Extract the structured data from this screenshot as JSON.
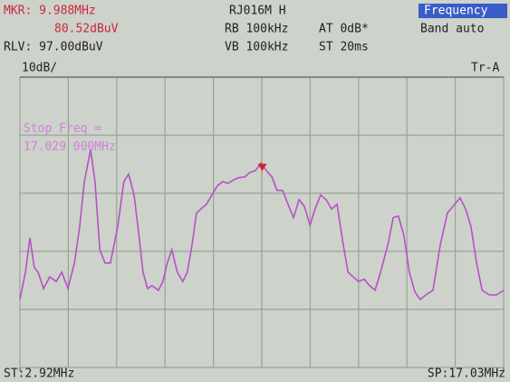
{
  "chart_data": {
    "type": "line",
    "annotations": [
      "RJ016M H",
      "RB 100kHz",
      "VB 100kHz",
      "AT 0dB*",
      "ST 20ms",
      "Frequency",
      "Band auto",
      "10dB/",
      "Tr-A",
      "Stop Freq =",
      "17.029 000MHz"
    ],
    "marker": {
      "x": 9.988,
      "x_label": "MKR: 9.988MHz",
      "y": 80.52,
      "y_label": "80.52dBuV"
    },
    "xlim": [
      2.92,
      17.03
    ],
    "xticks": [
      {
        "value": 2.92,
        "label": "ST:2.92MHz"
      },
      {
        "value": 17.03,
        "label": "SP:17.03MHz"
      }
    ],
    "ylim": [
      47,
      97
    ],
    "yticks": [
      {
        "value": 97,
        "label": "RLV: 97.00dBuV"
      }
    ],
    "grid": true,
    "x": [
      2.92,
      3.08,
      3.21,
      3.34,
      3.45,
      3.61,
      3.79,
      3.98,
      4.14,
      4.32,
      4.51,
      4.66,
      4.8,
      4.98,
      5.11,
      5.25,
      5.4,
      5.56,
      5.77,
      5.95,
      6.09,
      6.25,
      6.38,
      6.51,
      6.64,
      6.77,
      6.96,
      7.09,
      7.22,
      7.35,
      7.51,
      7.67,
      7.8,
      7.94,
      8.07,
      8.2,
      8.36,
      8.52,
      8.68,
      8.84,
      8.99,
      9.15,
      9.31,
      9.47,
      9.63,
      9.79,
      9.95,
      10.11,
      10.27,
      10.42,
      10.58,
      10.74,
      10.9,
      11.06,
      11.22,
      11.38,
      11.53,
      11.69,
      11.85,
      12.01,
      12.17,
      12.33,
      12.49,
      12.64,
      12.8,
      12.96,
      13.12,
      13.28,
      13.44,
      13.65,
      13.81,
      13.96,
      14.12,
      14.28,
      14.44,
      14.6,
      14.76,
      14.97,
      15.18,
      15.39,
      15.6,
      15.76,
      15.92,
      16.08,
      16.24,
      16.4,
      16.61,
      16.82,
      17.03
    ],
    "series": [
      {
        "color": "#b850c8",
        "values": [
          58.7,
          63.4,
          69.3,
          64.2,
          63.4,
          60.6,
          62.6,
          61.8,
          63.4,
          60.6,
          65.0,
          71.2,
          79.0,
          84.5,
          79.0,
          67.3,
          65.0,
          65.0,
          71.2,
          79.0,
          80.3,
          76.7,
          70.4,
          63.4,
          60.6,
          61.1,
          60.3,
          61.8,
          65.0,
          67.3,
          63.4,
          61.8,
          63.4,
          68.1,
          73.6,
          74.3,
          75.1,
          76.7,
          78.3,
          79.0,
          78.7,
          79.3,
          79.7,
          79.8,
          80.6,
          80.9,
          82.2,
          80.9,
          79.8,
          77.5,
          77.5,
          75.1,
          72.8,
          75.9,
          74.7,
          71.5,
          74.3,
          76.7,
          75.9,
          74.3,
          75.1,
          68.9,
          63.4,
          62.6,
          61.8,
          62.2,
          61.1,
          60.3,
          63.4,
          68.1,
          72.8,
          73.1,
          69.7,
          63.4,
          60.0,
          58.7,
          59.5,
          60.3,
          68.1,
          73.6,
          75.1,
          76.2,
          74.3,
          71.2,
          65.0,
          60.3,
          59.5,
          59.5,
          60.3
        ]
      }
    ]
  }
}
